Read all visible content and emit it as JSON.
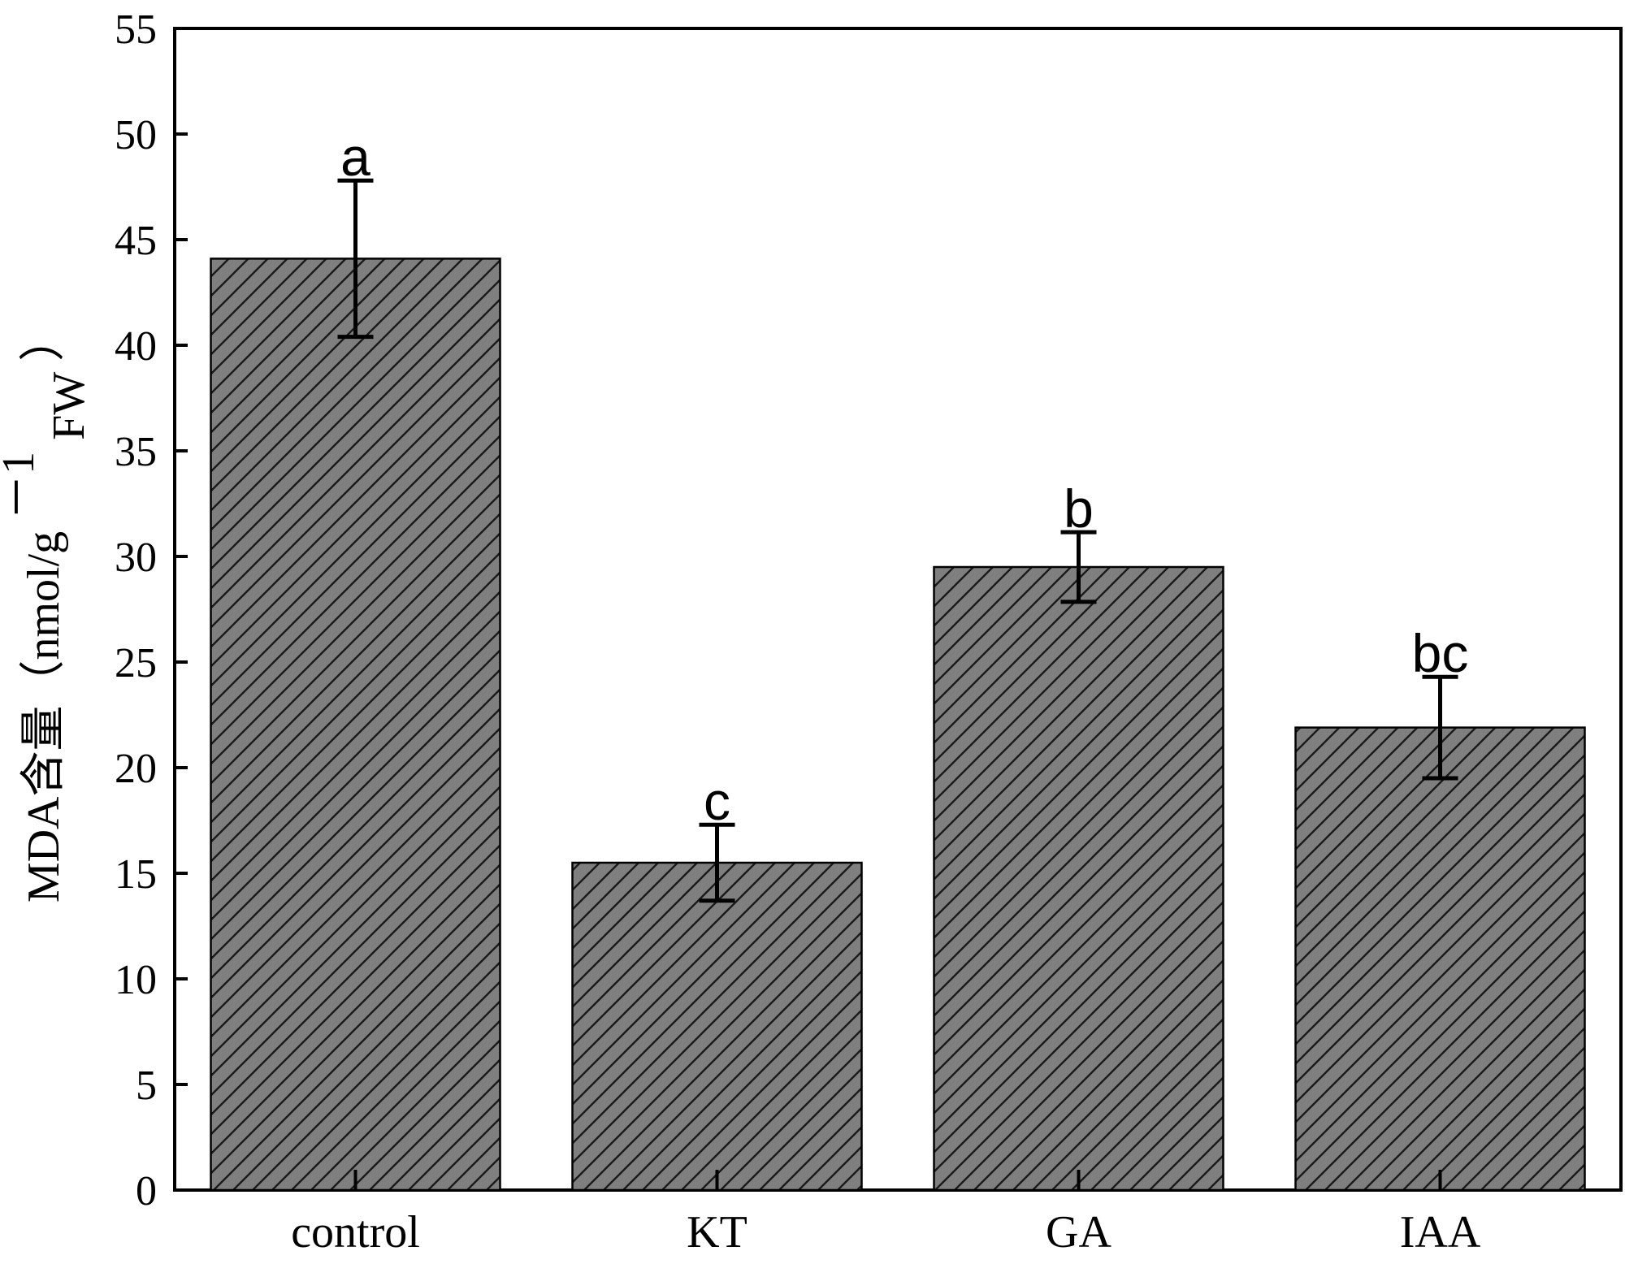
{
  "chart_data": {
    "type": "bar",
    "title": "",
    "xlabel": "",
    "ylabel": {
      "main": "MDA含量（nmol/g",
      "sup": "－1",
      "sub": "FW",
      "end": "）"
    },
    "categories": [
      "control",
      "KT",
      "GA",
      "IAA"
    ],
    "values": [
      44.1,
      15.5,
      29.5,
      21.9
    ],
    "errors": [
      3.7,
      1.8,
      1.65,
      2.4
    ],
    "significance": [
      "a",
      "c",
      "b",
      "bc"
    ],
    "ylim": [
      0,
      55
    ],
    "yticks": [
      0,
      5,
      10,
      15,
      20,
      25,
      30,
      35,
      40,
      45,
      50,
      55
    ],
    "grid": false,
    "bar_color": "#7f7f7f",
    "hatch": "diagonal-lines",
    "hatch_color": "#1a1a1a"
  }
}
